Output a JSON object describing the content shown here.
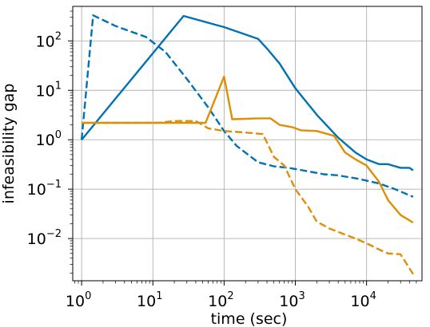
{
  "chart_data": {
    "type": "line",
    "xlabel": "time (sec)",
    "ylabel": "infeasibility gap",
    "xscale": "log",
    "yscale": "log",
    "xlim": [
      0.75,
      60000
    ],
    "ylim": [
      0.0014,
      500
    ],
    "grid": true,
    "legend": "none",
    "colors": {
      "blue": "#0072b2",
      "orange": "#de8f05"
    },
    "x_ticks": [
      {
        "value": 1,
        "base": "10",
        "exp": "0"
      },
      {
        "value": 10,
        "base": "10",
        "exp": "1"
      },
      {
        "value": 100,
        "base": "10",
        "exp": "2"
      },
      {
        "value": 1000,
        "base": "10",
        "exp": "3"
      },
      {
        "value": 10000,
        "base": "10",
        "exp": "4"
      }
    ],
    "y_ticks": [
      {
        "value": 0.01,
        "base": "10",
        "exp": "−2"
      },
      {
        "value": 0.1,
        "base": "10",
        "exp": "−1"
      },
      {
        "value": 1,
        "base": "10",
        "exp": "0"
      },
      {
        "value": 10,
        "base": "10",
        "exp": "1"
      },
      {
        "value": 100,
        "base": "10",
        "exp": "2"
      }
    ],
    "series": [
      {
        "color": "#0072b2",
        "dash": "solid",
        "points": [
          [
            1,
            1.0
          ],
          [
            27,
            320
          ],
          [
            100,
            190
          ],
          [
            300,
            110
          ],
          [
            400,
            70
          ],
          [
            600,
            35
          ],
          [
            1000,
            11
          ],
          [
            2000,
            3.2
          ],
          [
            4000,
            1.1
          ],
          [
            7000,
            0.55
          ],
          [
            10000,
            0.4
          ],
          [
            15000,
            0.32
          ],
          [
            20000,
            0.32
          ],
          [
            30000,
            0.27
          ],
          [
            40000,
            0.27
          ],
          [
            45000,
            0.24
          ]
        ]
      },
      {
        "color": "#0072b2",
        "dash": "dashed",
        "points": [
          [
            1,
            1.0
          ],
          [
            1.45,
            330
          ],
          [
            3,
            200
          ],
          [
            8,
            120
          ],
          [
            15,
            60
          ],
          [
            30,
            17
          ],
          [
            60,
            4.5
          ],
          [
            100,
            1.5
          ],
          [
            150,
            0.75
          ],
          [
            300,
            0.35
          ],
          [
            500,
            0.29
          ],
          [
            800,
            0.27
          ],
          [
            1500,
            0.23
          ],
          [
            2500,
            0.2
          ],
          [
            4000,
            0.19
          ],
          [
            8000,
            0.16
          ],
          [
            15000,
            0.13
          ],
          [
            25000,
            0.1
          ],
          [
            45000,
            0.07
          ]
        ]
      },
      {
        "color": "#de8f05",
        "dash": "solid",
        "points": [
          [
            1,
            2.2
          ],
          [
            10,
            2.2
          ],
          [
            20,
            2.2
          ],
          [
            55,
            2.2
          ],
          [
            100,
            19
          ],
          [
            130,
            2.6
          ],
          [
            300,
            2.7
          ],
          [
            450,
            2.7
          ],
          [
            600,
            2.0
          ],
          [
            900,
            1.8
          ],
          [
            1200,
            1.55
          ],
          [
            2000,
            1.5
          ],
          [
            3500,
            1.2
          ],
          [
            5000,
            0.55
          ],
          [
            7000,
            0.4
          ],
          [
            10000,
            0.3
          ],
          [
            15000,
            0.14
          ],
          [
            20000,
            0.06
          ],
          [
            30000,
            0.03
          ],
          [
            45000,
            0.021
          ]
        ]
      },
      {
        "color": "#de8f05",
        "dash": "dashed",
        "points": [
          [
            1,
            2.2
          ],
          [
            5,
            2.2
          ],
          [
            12,
            2.2
          ],
          [
            20,
            2.4
          ],
          [
            40,
            2.4
          ],
          [
            60,
            1.7
          ],
          [
            100,
            1.5
          ],
          [
            200,
            1.4
          ],
          [
            350,
            1.3
          ],
          [
            500,
            0.45
          ],
          [
            700,
            0.3
          ],
          [
            1000,
            0.1
          ],
          [
            1500,
            0.045
          ],
          [
            2000,
            0.022
          ],
          [
            3000,
            0.016
          ],
          [
            5000,
            0.012
          ],
          [
            7000,
            0.01
          ],
          [
            10000,
            0.008
          ],
          [
            15000,
            0.006
          ],
          [
            20000,
            0.005
          ],
          [
            30000,
            0.0048
          ],
          [
            40000,
            0.0025
          ],
          [
            45000,
            0.0019
          ]
        ]
      }
    ]
  }
}
